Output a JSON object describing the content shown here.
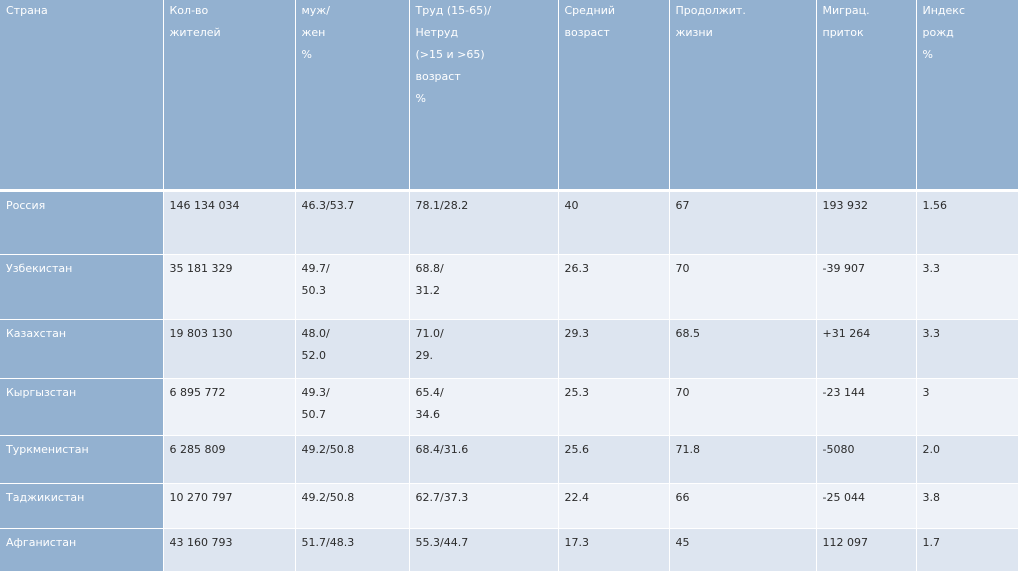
{
  "headers": [
    [
      "Страна"
    ],
    [
      "Кол-во",
      "жителей"
    ],
    [
      "муж/",
      "жен",
      "%"
    ],
    [
      "Труд (15-65)/",
      "Нетруд",
      "(>15 и >65)",
      "возраст",
      "%"
    ],
    [
      "Средний возраст"
    ],
    [
      "Продолжит.",
      "жизни"
    ],
    [
      "Миграц.",
      "приток"
    ],
    [
      "Индекс",
      "рожд",
      "%"
    ]
  ],
  "rows": [
    {
      "country": "Россия",
      "pop": "146 134 034",
      "mf": [
        "46.3/53.7"
      ],
      "work": [
        "78.1/28.2"
      ],
      "age": "40",
      "life": "67",
      "migr": "193 932",
      "birth": "1.56"
    },
    {
      "country": "Узбекистан",
      "pop": "35 181 329",
      "mf": [
        "49.7/",
        "50.3"
      ],
      "work": [
        "68.8/",
        "31.2"
      ],
      "age": "26.3",
      "life": "70",
      "migr": "-39 907",
      "birth": "3.3"
    },
    {
      "country": "Казахстан",
      "pop": "19 803 130",
      "mf": [
        "48.0/",
        "52.0"
      ],
      "work": [
        "71.0/",
        "29."
      ],
      "age": "29.3",
      "life": "68.5",
      "migr": "+31 264",
      "birth": "3.3"
    },
    {
      "country": "Кыргызстан",
      "pop": "6 895 772",
      "mf": [
        "49.3/",
        "50.7"
      ],
      "work": [
        "65.4/",
        "34.6"
      ],
      "age": "25.3",
      "life": "70",
      "migr": "-23 144",
      "birth": "3"
    },
    {
      "country": "Туркменистан",
      "pop": "6 285 809",
      "mf": [
        "49.2/50.8"
      ],
      "work": [
        "68.4/31.6"
      ],
      "age": "25.6",
      "life": "71.8",
      "migr": "-5080",
      "birth": "2.0"
    },
    {
      "country": "Таджикистан",
      "pop": "10 270 797",
      "mf": [
        "49.2/50.8"
      ],
      "work": [
        "62.7/37.3"
      ],
      "age": "22.4",
      "life": "66",
      "migr": "-25 044",
      "birth": "3.8"
    },
    {
      "country": "Афганистан",
      "pop": "43 160 793",
      "mf": [
        "51.7/48.3"
      ],
      "work": [
        "55.3/44.7"
      ],
      "age": "17.3",
      "life": "45",
      "migr": "112 097",
      "birth": "1.7"
    }
  ]
}
